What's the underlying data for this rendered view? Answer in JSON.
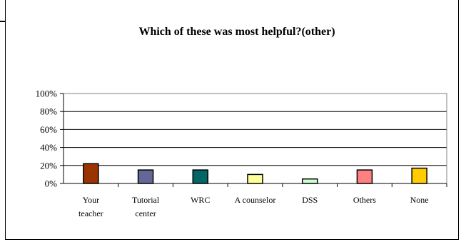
{
  "chart_data": {
    "type": "bar",
    "title": "Which of these was most helpful?(other)",
    "xlabel": "",
    "ylabel": "",
    "ylim": [
      0,
      100
    ],
    "y_ticks": [
      "0%",
      "20%",
      "40%",
      "60%",
      "80%",
      "100%"
    ],
    "grid": true,
    "legend": "none",
    "categories": [
      [
        "Your",
        "teacher"
      ],
      [
        "Tutorial",
        "center"
      ],
      [
        "WRC"
      ],
      [
        "A counselor"
      ],
      [
        "DSS"
      ],
      [
        "Others"
      ],
      [
        "None"
      ]
    ],
    "values": [
      22,
      15,
      15,
      10,
      5,
      15,
      17
    ],
    "colors": [
      "#993300",
      "#666699",
      "#006666",
      "#ffff99",
      "#ccffcc",
      "#ff8080",
      "#ffcc00"
    ]
  }
}
